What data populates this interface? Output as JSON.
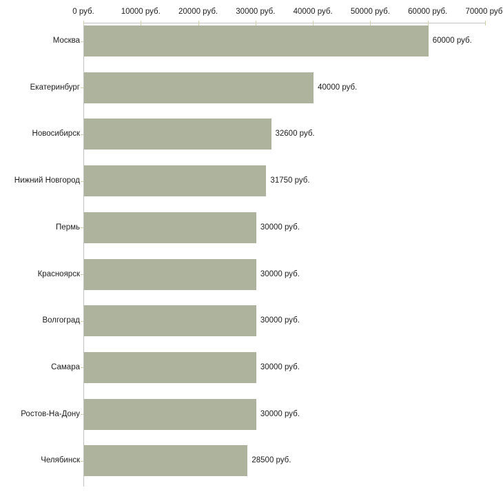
{
  "chart_data": {
    "type": "bar",
    "orientation": "horizontal",
    "title": "",
    "xlabel": "",
    "ylabel": "",
    "unit": "руб.",
    "categories": [
      "Москва",
      "Екатеринбург",
      "Новосибирск",
      "Нижний Новгород",
      "Пермь",
      "Красноярск",
      "Волгоград",
      "Самара",
      "Ростов-На-Дону",
      "Челябинск"
    ],
    "values": [
      60000,
      40000,
      32600,
      31750,
      30000,
      30000,
      30000,
      30000,
      30000,
      28500
    ],
    "value_labels": [
      "60000 руб.",
      "40000 руб.",
      "32600 руб.",
      "31750 руб.",
      "30000 руб.",
      "30000 руб.",
      "30000 руб.",
      "30000 руб.",
      "30000 руб.",
      "28500 руб."
    ],
    "x_ticks": [
      0,
      10000,
      20000,
      30000,
      40000,
      50000,
      60000,
      70000
    ],
    "x_tick_labels": [
      "0 руб.",
      "10000 руб.",
      "20000 руб.",
      "30000 руб.",
      "40000 руб.",
      "50000 руб.",
      "60000 руб.",
      "70000 руб."
    ],
    "xlim": [
      0,
      70000
    ],
    "grid": false,
    "legend": "none",
    "colors": {
      "bar": "#adb39c",
      "axis": "#c2c2c2",
      "tick": "#cfcfa4",
      "text": "#1d1d1d",
      "background": "#ffffff"
    }
  }
}
